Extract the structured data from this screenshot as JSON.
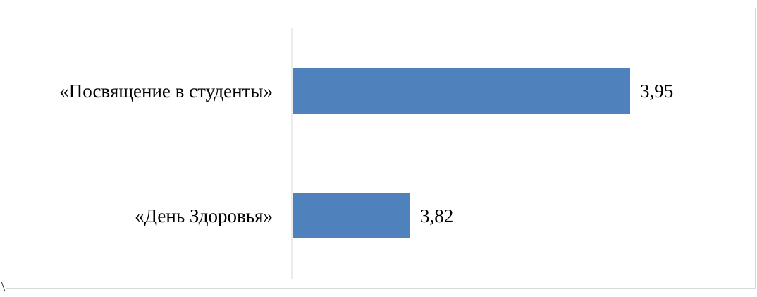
{
  "chart_data": {
    "type": "bar",
    "orientation": "horizontal",
    "categories": [
      "«Посвящение в студенты»",
      "«День Здоровья»"
    ],
    "values": [
      3.95,
      3.82
    ],
    "value_labels": [
      "3,95",
      "3,82"
    ],
    "xlim": [
      3.75,
      4.0
    ],
    "grid": false,
    "legend": "none",
    "bar_color": "#4f81bd",
    "axis_color": "#d9d9d9"
  },
  "stray_mark": "\\"
}
